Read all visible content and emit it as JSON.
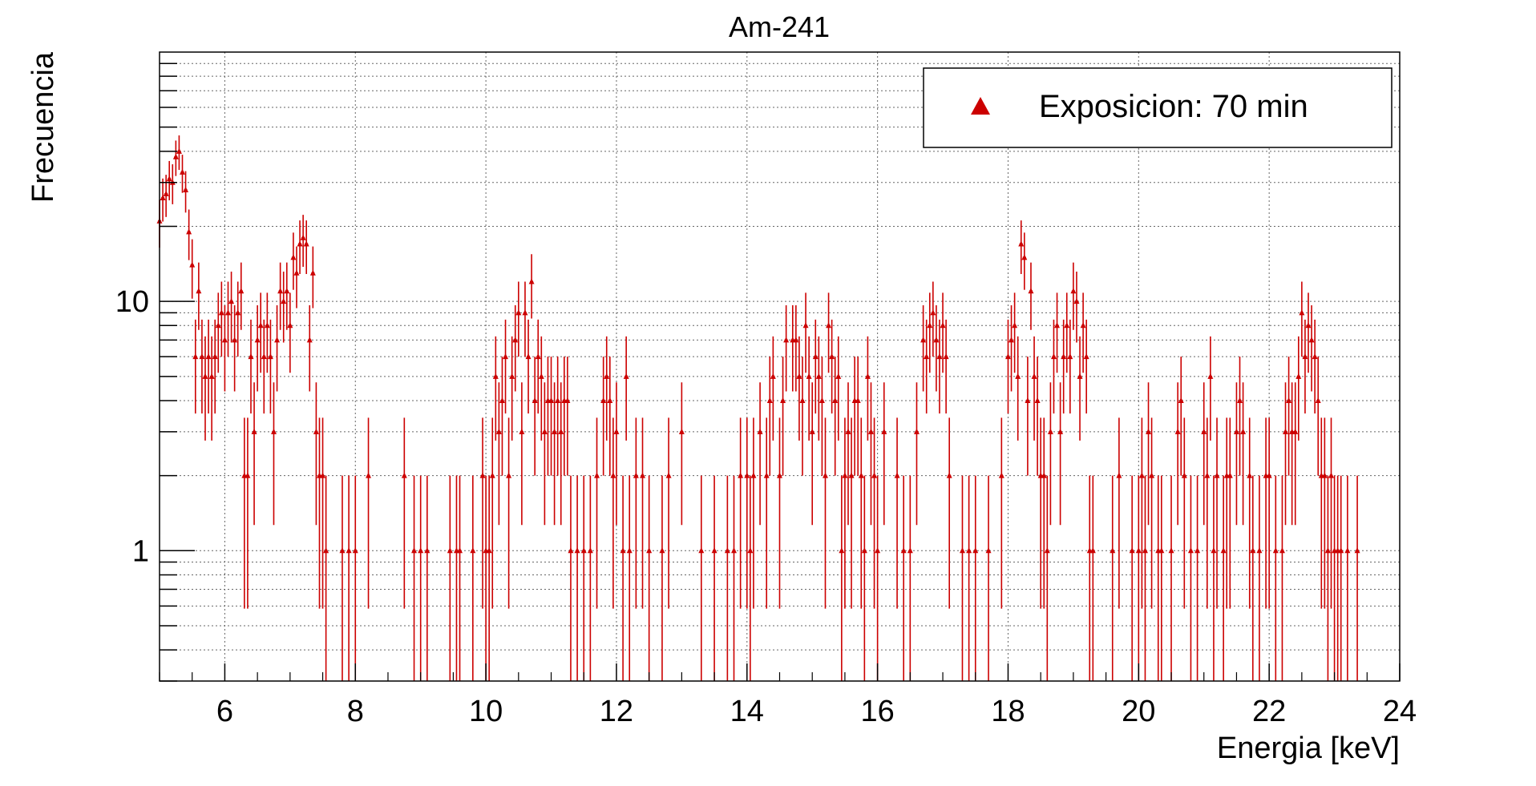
{
  "chart_data": {
    "type": "scatter",
    "title": "Am-241",
    "xlabel": "Energia [keV]",
    "ylabel": "Frecuencia",
    "xlim": [
      5,
      24
    ],
    "ylim": [
      0.3,
      100
    ],
    "y_scale": "log",
    "grid": true,
    "legend_position": "top-right",
    "x_ticks": [
      "6",
      "8",
      "10",
      "12",
      "14",
      "16",
      "18",
      "20",
      "22",
      "24"
    ],
    "y_ticks": [
      "1",
      "10"
    ],
    "marker": "triangle-up",
    "series": [
      {
        "name": "Exposicion: 70 min",
        "color": "#cc0000",
        "points": [
          [
            5.0,
            21
          ],
          [
            5.05,
            26
          ],
          [
            5.1,
            27
          ],
          [
            5.15,
            31
          ],
          [
            5.2,
            30
          ],
          [
            5.25,
            38
          ],
          [
            5.3,
            40
          ],
          [
            5.35,
            33
          ],
          [
            5.4,
            28
          ],
          [
            5.45,
            19
          ],
          [
            5.5,
            14
          ],
          [
            5.55,
            6
          ],
          [
            5.6,
            11
          ],
          [
            5.65,
            6
          ],
          [
            5.7,
            5
          ],
          [
            5.75,
            6
          ],
          [
            5.8,
            5
          ],
          [
            5.85,
            6
          ],
          [
            5.9,
            8
          ],
          [
            5.95,
            9
          ],
          [
            6.0,
            7
          ],
          [
            6.05,
            9
          ],
          [
            6.1,
            10
          ],
          [
            6.15,
            7
          ],
          [
            6.2,
            9
          ],
          [
            6.25,
            11
          ],
          [
            6.3,
            2
          ],
          [
            6.35,
            2
          ],
          [
            6.4,
            6
          ],
          [
            6.45,
            3
          ],
          [
            6.5,
            7
          ],
          [
            6.55,
            8
          ],
          [
            6.6,
            6
          ],
          [
            6.65,
            8
          ],
          [
            6.7,
            6
          ],
          [
            6.75,
            3
          ],
          [
            6.8,
            7
          ],
          [
            6.85,
            11
          ],
          [
            6.9,
            10
          ],
          [
            6.95,
            11
          ],
          [
            7.0,
            8
          ],
          [
            7.05,
            15
          ],
          [
            7.1,
            13
          ],
          [
            7.15,
            17
          ],
          [
            7.2,
            18
          ],
          [
            7.25,
            17
          ],
          [
            7.3,
            7
          ],
          [
            7.35,
            13
          ],
          [
            7.4,
            3
          ],
          [
            7.45,
            2
          ],
          [
            7.5,
            2
          ],
          [
            7.55,
            1
          ],
          [
            7.8,
            1
          ],
          [
            7.9,
            1
          ],
          [
            8.0,
            1
          ],
          [
            8.2,
            2
          ],
          [
            8.75,
            2
          ],
          [
            8.9,
            1
          ],
          [
            9.0,
            1
          ],
          [
            9.1,
            1
          ],
          [
            9.45,
            1
          ],
          [
            9.55,
            1
          ],
          [
            9.6,
            1
          ],
          [
            9.8,
            1
          ],
          [
            9.95,
            2
          ],
          [
            10.0,
            1
          ],
          [
            10.05,
            1
          ],
          [
            10.1,
            2
          ],
          [
            10.15,
            5
          ],
          [
            10.2,
            3
          ],
          [
            10.25,
            4
          ],
          [
            10.3,
            6
          ],
          [
            10.35,
            2
          ],
          [
            10.4,
            5
          ],
          [
            10.45,
            7
          ],
          [
            10.5,
            9
          ],
          [
            10.55,
            3
          ],
          [
            10.6,
            9
          ],
          [
            10.65,
            6
          ],
          [
            10.7,
            12
          ],
          [
            10.75,
            4
          ],
          [
            10.8,
            6
          ],
          [
            10.85,
            5
          ],
          [
            10.9,
            3
          ],
          [
            10.95,
            4
          ],
          [
            11.0,
            4
          ],
          [
            11.05,
            3
          ],
          [
            11.1,
            4
          ],
          [
            11.15,
            3
          ],
          [
            11.2,
            4
          ],
          [
            11.25,
            4
          ],
          [
            11.3,
            1
          ],
          [
            11.4,
            1
          ],
          [
            11.5,
            1
          ],
          [
            11.6,
            1
          ],
          [
            11.7,
            2
          ],
          [
            11.8,
            4
          ],
          [
            11.85,
            5
          ],
          [
            11.9,
            4
          ],
          [
            11.95,
            2
          ],
          [
            12.0,
            3
          ],
          [
            12.1,
            1
          ],
          [
            12.15,
            5
          ],
          [
            12.2,
            1
          ],
          [
            12.3,
            2
          ],
          [
            12.4,
            2
          ],
          [
            12.5,
            1
          ],
          [
            12.7,
            1
          ],
          [
            12.8,
            2
          ],
          [
            13.0,
            3
          ],
          [
            13.3,
            1
          ],
          [
            13.5,
            1
          ],
          [
            13.7,
            1
          ],
          [
            13.8,
            1
          ],
          [
            13.9,
            2
          ],
          [
            14.0,
            2
          ],
          [
            14.05,
            1
          ],
          [
            14.1,
            2
          ],
          [
            14.2,
            3
          ],
          [
            14.3,
            2
          ],
          [
            14.35,
            4
          ],
          [
            14.4,
            5
          ],
          [
            14.5,
            2
          ],
          [
            14.55,
            4
          ],
          [
            14.6,
            7
          ],
          [
            14.7,
            7
          ],
          [
            14.75,
            7
          ],
          [
            14.8,
            5
          ],
          [
            14.85,
            4
          ],
          [
            14.9,
            8
          ],
          [
            14.95,
            5
          ],
          [
            15.0,
            3
          ],
          [
            15.05,
            6
          ],
          [
            15.1,
            5
          ],
          [
            15.15,
            4
          ],
          [
            15.2,
            2
          ],
          [
            15.25,
            8
          ],
          [
            15.3,
            6
          ],
          [
            15.35,
            4
          ],
          [
            15.4,
            5
          ],
          [
            15.45,
            1
          ],
          [
            15.5,
            2
          ],
          [
            15.55,
            3
          ],
          [
            15.6,
            2
          ],
          [
            15.65,
            4
          ],
          [
            15.7,
            4
          ],
          [
            15.75,
            2
          ],
          [
            15.8,
            1
          ],
          [
            15.85,
            5
          ],
          [
            15.9,
            3
          ],
          [
            15.95,
            2
          ],
          [
            16.0,
            1
          ],
          [
            16.1,
            3
          ],
          [
            16.3,
            2
          ],
          [
            16.4,
            1
          ],
          [
            16.5,
            1
          ],
          [
            16.6,
            3
          ],
          [
            16.7,
            7
          ],
          [
            16.75,
            6
          ],
          [
            16.8,
            8
          ],
          [
            16.85,
            9
          ],
          [
            16.9,
            7
          ],
          [
            16.95,
            6
          ],
          [
            17.0,
            8
          ],
          [
            17.05,
            6
          ],
          [
            17.1,
            2
          ],
          [
            17.3,
            1
          ],
          [
            17.4,
            1
          ],
          [
            17.5,
            1
          ],
          [
            17.7,
            1
          ],
          [
            17.9,
            2
          ],
          [
            18.0,
            6
          ],
          [
            18.05,
            7
          ],
          [
            18.1,
            8
          ],
          [
            18.15,
            5
          ],
          [
            18.2,
            17
          ],
          [
            18.25,
            15
          ],
          [
            18.3,
            4
          ],
          [
            18.35,
            11
          ],
          [
            18.4,
            5
          ],
          [
            18.45,
            4
          ],
          [
            18.5,
            2
          ],
          [
            18.55,
            2
          ],
          [
            18.6,
            1
          ],
          [
            18.65,
            3
          ],
          [
            18.7,
            6
          ],
          [
            18.75,
            8
          ],
          [
            18.8,
            3
          ],
          [
            18.85,
            6
          ],
          [
            18.9,
            8
          ],
          [
            18.95,
            6
          ],
          [
            19.0,
            11
          ],
          [
            19.05,
            10
          ],
          [
            19.1,
            5
          ],
          [
            19.15,
            8
          ],
          [
            19.2,
            6
          ],
          [
            19.25,
            1
          ],
          [
            19.3,
            1
          ],
          [
            19.6,
            1
          ],
          [
            19.7,
            2
          ],
          [
            19.9,
            1
          ],
          [
            20.0,
            1
          ],
          [
            20.05,
            2
          ],
          [
            20.1,
            1
          ],
          [
            20.15,
            3
          ],
          [
            20.2,
            2
          ],
          [
            20.3,
            1
          ],
          [
            20.35,
            1
          ],
          [
            20.5,
            1
          ],
          [
            20.6,
            3
          ],
          [
            20.65,
            4
          ],
          [
            20.7,
            2
          ],
          [
            20.8,
            1
          ],
          [
            20.9,
            1
          ],
          [
            21.0,
            3
          ],
          [
            21.05,
            2
          ],
          [
            21.1,
            5
          ],
          [
            21.15,
            1
          ],
          [
            21.2,
            2
          ],
          [
            21.3,
            1
          ],
          [
            21.35,
            2
          ],
          [
            21.4,
            2
          ],
          [
            21.5,
            3
          ],
          [
            21.55,
            4
          ],
          [
            21.6,
            3
          ],
          [
            21.7,
            2
          ],
          [
            21.75,
            1
          ],
          [
            21.85,
            1
          ],
          [
            21.95,
            2
          ],
          [
            22.0,
            2
          ],
          [
            22.1,
            1
          ],
          [
            22.2,
            1
          ],
          [
            22.25,
            3
          ],
          [
            22.3,
            4
          ],
          [
            22.35,
            3
          ],
          [
            22.4,
            3
          ],
          [
            22.45,
            5
          ],
          [
            22.5,
            9
          ],
          [
            22.55,
            6
          ],
          [
            22.6,
            8
          ],
          [
            22.65,
            7
          ],
          [
            22.7,
            6
          ],
          [
            22.75,
            4
          ],
          [
            22.8,
            2
          ],
          [
            22.85,
            2
          ],
          [
            22.9,
            1
          ],
          [
            22.95,
            2
          ],
          [
            23.0,
            1
          ],
          [
            23.05,
            1
          ],
          [
            23.1,
            1
          ],
          [
            23.2,
            1
          ],
          [
            23.35,
            1
          ]
        ]
      }
    ]
  }
}
